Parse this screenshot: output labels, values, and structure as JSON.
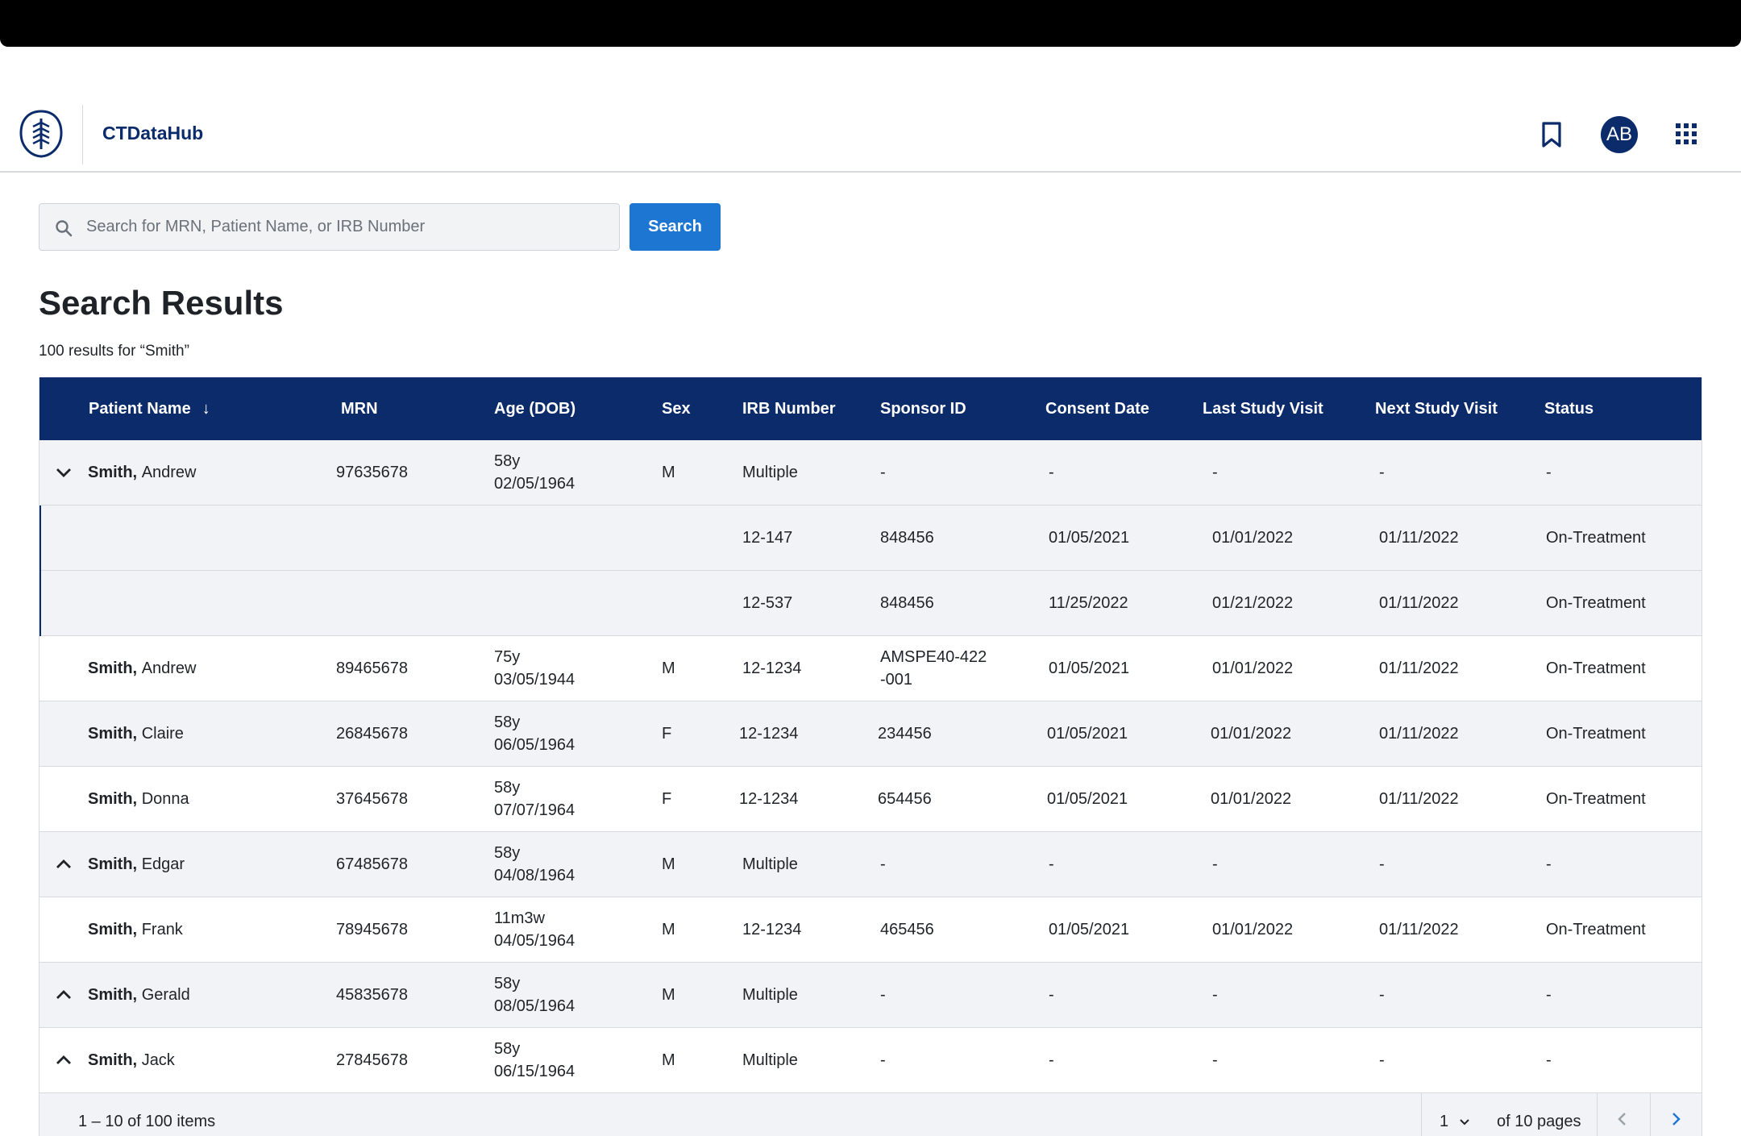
{
  "header": {
    "app_name": "CTDataHub",
    "avatar_initials": "AB",
    "icons": [
      "logo-icon",
      "bookmark-icon",
      "apps-grid-icon"
    ]
  },
  "search": {
    "placeholder": "Search for MRN, Patient Name, or IRB Number",
    "value": "",
    "button_label": "Search"
  },
  "results": {
    "title": "Search Results",
    "count_text": "100 results for “Smith”"
  },
  "table": {
    "headers": {
      "name": "Patient Name",
      "mrn": "MRN",
      "age": "Age (DOB)",
      "sex": "Sex",
      "irb": "IRB Number",
      "sponsor": "Sponsor ID",
      "consent": "Consent Date",
      "last": "Last Study Visit",
      "next": "Next Study Visit",
      "status": "Status"
    },
    "sort_indicator": "↓",
    "rows": [
      {
        "last": "Smith,",
        "first": "Andrew",
        "mrn": "97635678",
        "age": "58y",
        "dob": "02/05/1964",
        "sex": "M",
        "irb": "Multiple",
        "sponsor": "-",
        "consent": "-",
        "last_visit": "-",
        "next_visit": "-",
        "status": "-"
      },
      {
        "irb": "12-147",
        "sponsor": "848456",
        "consent": "01/05/2021",
        "last_visit": "01/01/2022",
        "next_visit": "01/11/2022",
        "status": "On-Treatment"
      },
      {
        "irb": "12-537",
        "sponsor": "848456",
        "consent": "11/25/2022",
        "last_visit": "01/21/2022",
        "next_visit": "01/11/2022",
        "status": "On-Treatment"
      },
      {
        "last": "Smith,",
        "first": "Andrew",
        "mrn": "89465678",
        "age": "75y",
        "dob": "03/05/1944",
        "sex": "M",
        "irb": "12-1234",
        "sponsor": "AMSPE40-422",
        "sponsor2": "-001",
        "consent": "01/05/2021",
        "last_visit": "01/01/2022",
        "next_visit": "01/11/2022",
        "status": "On-Treatment"
      },
      {
        "last": "Smith,",
        "first": "Claire",
        "mrn": "26845678",
        "age": "58y",
        "dob": "06/05/1964",
        "sex": "F",
        "irb": "12-1234",
        "sponsor": "234456",
        "consent": "01/05/2021",
        "last_visit": "01/01/2022",
        "next_visit": "01/11/2022",
        "status": "On-Treatment"
      },
      {
        "last": "Smith,",
        "first": "Donna",
        "mrn": "37645678",
        "age": "58y",
        "dob": "07/07/1964",
        "sex": "F",
        "irb": "12-1234",
        "sponsor": "654456",
        "consent": "01/05/2021",
        "last_visit": "01/01/2022",
        "next_visit": "01/11/2022",
        "status": "On-Treatment"
      },
      {
        "last": "Smith,",
        "first": "Edgar",
        "mrn": "67485678",
        "age": "58y",
        "dob": "04/08/1964",
        "sex": "M",
        "irb": "Multiple",
        "sponsor": "-",
        "consent": "-",
        "last_visit": "-",
        "next_visit": "-",
        "status": "-"
      },
      {
        "last": "Smith,",
        "first": "Frank",
        "mrn": "78945678",
        "age": "11m3w",
        "dob": "04/05/1964",
        "sex": "M",
        "irb": "12-1234",
        "sponsor": "465456",
        "consent": "01/05/2021",
        "last_visit": "01/01/2022",
        "next_visit": "01/11/2022",
        "status": "On-Treatment"
      },
      {
        "last": "Smith,",
        "first": "Gerald",
        "mrn": "45835678",
        "age": "58y",
        "dob": "08/05/1964",
        "sex": "M",
        "irb": "Multiple",
        "sponsor": "-",
        "consent": "-",
        "last_visit": "-",
        "next_visit": "-",
        "status": "-"
      },
      {
        "last": "Smith,",
        "first": "Jack",
        "mrn": "27845678",
        "age": "58y",
        "dob": "06/15/1964",
        "sex": "M",
        "irb": "Multiple",
        "sponsor": "-",
        "consent": "-",
        "last_visit": "-",
        "next_visit": "-",
        "status": "-"
      }
    ]
  },
  "pagination": {
    "items_text": "1 – 10 of 100 items",
    "current_page": "1",
    "of_pages_text": "of 10 pages",
    "icons": [
      "chevron-down-icon",
      "chevron-left-icon",
      "chevron-right-icon"
    ]
  },
  "colors": {
    "brand_navy": "#0b2b6b",
    "accent_blue": "#1c76d2",
    "row_shade": "#f2f3f6"
  }
}
